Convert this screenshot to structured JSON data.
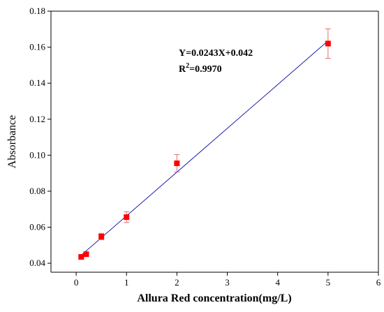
{
  "chart_data": {
    "type": "scatter",
    "xlabel": "Allura Red concentration(mg/L)",
    "ylabel": "Absorbance",
    "xlim": [
      -0.5,
      6
    ],
    "ylim": [
      0.035,
      0.18
    ],
    "xticks": [
      "0",
      "1",
      "2",
      "3",
      "4",
      "5",
      "6"
    ],
    "yticks": [
      "0.04",
      "0.06",
      "0.08",
      "0.10",
      "0.12",
      "0.14",
      "0.16",
      "0.18"
    ],
    "series": [
      {
        "points": [
          {
            "x": 0.1,
            "y": 0.0435,
            "err": 0.0012
          },
          {
            "x": 0.2,
            "y": 0.045,
            "err": 0.0012
          },
          {
            "x": 0.5,
            "y": 0.0548,
            "err": 0.0018
          },
          {
            "x": 1.0,
            "y": 0.0656,
            "err": 0.003
          },
          {
            "x": 2.0,
            "y": 0.0955,
            "err": 0.0048
          },
          {
            "x": 5.0,
            "y": 0.162,
            "err": 0.0082
          }
        ],
        "color": "#ff0000",
        "error_color": "#e07070"
      }
    ],
    "fit": {
      "slope": 0.0243,
      "intercept": 0.042,
      "x_range": [
        0.1,
        5.0
      ],
      "color": "#1c1cb0",
      "equation": "Y=0.0243X+0.042",
      "r2_prefix": "R",
      "r2_sup": "2",
      "r2_value": "=0.9970"
    },
    "grid": false,
    "legend": "none"
  }
}
